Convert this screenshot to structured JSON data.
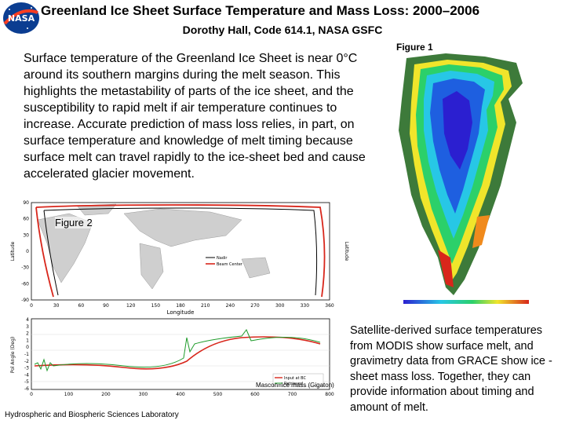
{
  "header": {
    "title": "Greenland Ice Sheet Surface Temperature and Mass Loss: 2000–2006",
    "author": "Dorothy Hall, Code 614.1, NASA GSFC",
    "logo_text": "NASA"
  },
  "intro_text": "Surface temperature of the Greenland Ice Sheet is near 0°C around its southern margins during the melt season. This highlights the metastability of parts of the ice sheet, and the susceptibility to rapid melt if air temperature continues to increase. Accurate prediction of mass loss relies, in part, on surface temperature and knowledge of melt timing because surface melt can travel rapidly to the ice-sheet bed and cause accelerated glacier movement.",
  "figure1": {
    "label": "Figure 1"
  },
  "figure2": {
    "label": "Figure 2",
    "xlabel": "Longitude",
    "ylabel": "Latitude",
    "x_ticks": [
      "0",
      "30",
      "60",
      "90",
      "120",
      "150",
      "180",
      "210",
      "240",
      "270",
      "300",
      "330",
      "360"
    ],
    "y_ticks": [
      "90",
      "60",
      "30",
      "0",
      "-30",
      "-60",
      "-90"
    ],
    "legend": [
      "Nadir",
      "Beam Center"
    ]
  },
  "figure3": {
    "ylabel": "Pol Angle (Deg)",
    "y_ticks": [
      "4",
      "3",
      "2",
      "1",
      "0",
      "-1",
      "-2",
      "-3",
      "-4",
      "-5",
      "-6"
    ],
    "x_ticks": [
      "0",
      "100",
      "200",
      "300",
      "400",
      "500",
      "600",
      "700",
      "800"
    ],
    "legend": [
      "Input at BC",
      "Retrieved"
    ],
    "xlabel": "Mascon=ice mass (Gigaton)"
  },
  "footer": "Hydrospheric and Biospheric Sciences Laboratory",
  "caption": "Satellite-derived surface temperatures from MODIS show surface melt, and gravimetry data from GRACE show ice -sheet mass loss. Together, they can provide information about timing and amount of melt.",
  "colors": {
    "ocean": "#ffffff",
    "land": "#3d7a3a",
    "melt_red": "#d8261b",
    "core": "#2b1fd0"
  }
}
